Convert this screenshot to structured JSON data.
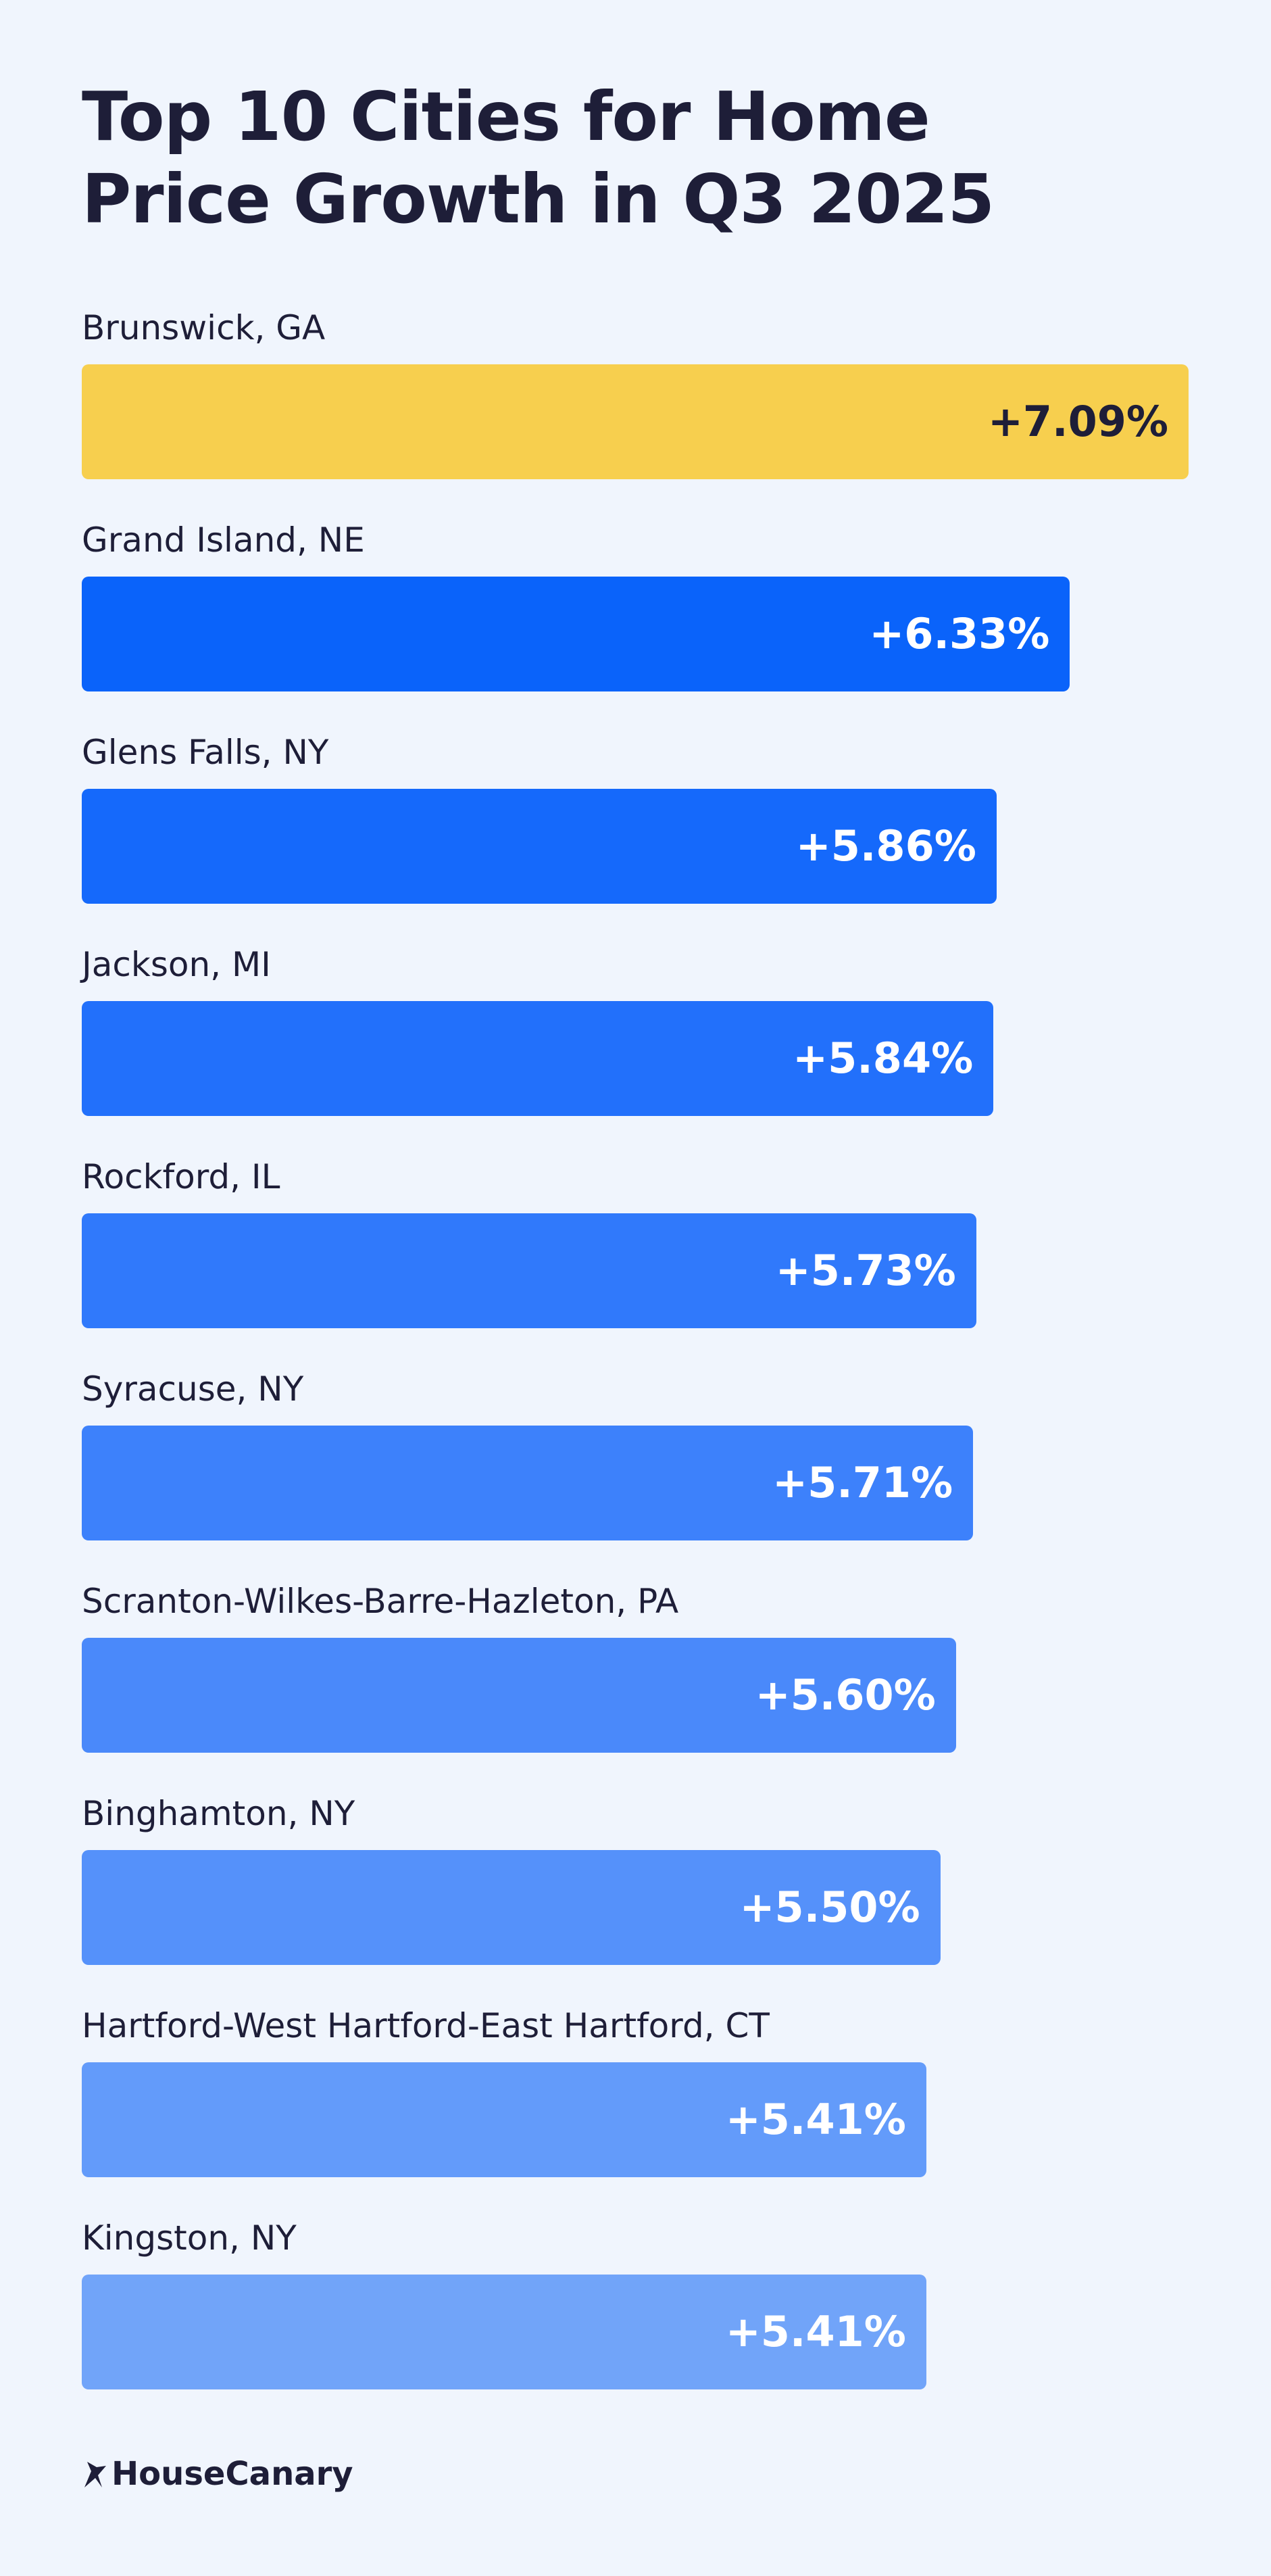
{
  "chart_data": {
    "type": "bar",
    "orientation": "horizontal",
    "title": "Top 10 Cities for Home Price Growth in Q3 2025",
    "categories": [
      "Brunswick, GA",
      "Grand Island, NE",
      "Glens Falls, NY",
      "Jackson, MI",
      "Rockford, IL",
      "Syracuse, NY",
      "Scranton-Wilkes-Barre-Hazleton, PA",
      "Binghamton, NY",
      "Hartford-West Hartford-East Hartford, CT",
      "Kingston, NY"
    ],
    "values": [
      7.09,
      6.33,
      5.86,
      5.84,
      5.73,
      5.71,
      5.6,
      5.5,
      5.41,
      5.41
    ],
    "value_labels": [
      "+7.09%",
      "+6.33%",
      "+5.86%",
      "+5.84%",
      "+5.73%",
      "+5.71%",
      "+5.60%",
      "+5.50%",
      "+5.41%",
      "+5.41%"
    ],
    "colors": [
      "#f7cf4e",
      "#0a63fa",
      "#1569fb",
      "#2270fb",
      "#3079fb",
      "#3d81fb",
      "#4a89fa",
      "#5591fa",
      "#639bfa",
      "#71a4f9"
    ],
    "value_label_colors": [
      "#1e1e38",
      "#ffffff",
      "#ffffff",
      "#ffffff",
      "#ffffff",
      "#ffffff",
      "#ffffff",
      "#ffffff",
      "#ffffff",
      "#ffffff"
    ]
  },
  "brand": "HouseCanary"
}
